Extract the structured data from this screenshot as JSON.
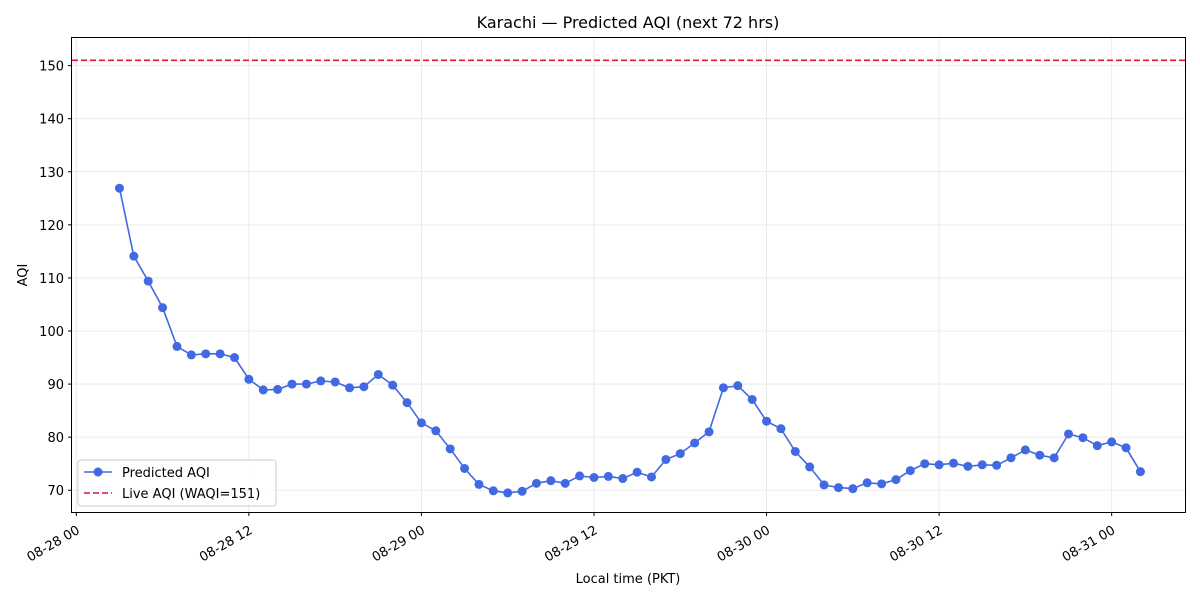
{
  "chart_data": {
    "type": "line",
    "title": "Karachi — Predicted AQI (next 72 hrs)",
    "xlabel": "Local time (PKT)",
    "ylabel": "AQI",
    "x_unit": "hours",
    "x_ticks": [
      {
        "label": "08-28 00",
        "value": 0
      },
      {
        "label": "08-28 12",
        "value": 12
      },
      {
        "label": "08-29 00",
        "value": 24
      },
      {
        "label": "08-29 12",
        "value": 36
      },
      {
        "label": "08-30 00",
        "value": 48
      },
      {
        "label": "08-30 12",
        "value": 60
      },
      {
        "label": "08-31 00",
        "value": 72
      }
    ],
    "xlim": [
      -0.3,
      77.1
    ],
    "y_ticks": [
      70,
      80,
      90,
      100,
      110,
      120,
      130,
      140,
      150
    ],
    "ylim": [
      65.9,
      155.2
    ],
    "grid": true,
    "legend_position": "lower-left",
    "series": [
      {
        "name": "Predicted AQI",
        "color": "#4169e1",
        "style": "line-marker",
        "x": [
          3,
          4,
          5,
          6,
          7,
          8,
          9,
          10,
          11,
          12,
          13,
          14,
          15,
          16,
          17,
          18,
          19,
          20,
          21,
          22,
          23,
          24,
          25,
          26,
          27,
          28,
          29,
          30,
          31,
          32,
          33,
          34,
          35,
          36,
          37,
          38,
          39,
          40,
          41,
          42,
          43,
          44,
          45,
          46,
          47,
          48,
          49,
          50,
          51,
          52,
          53,
          54,
          55,
          56,
          57,
          58,
          59,
          60,
          61,
          62,
          63,
          64,
          65,
          66,
          67,
          68,
          69,
          70,
          71,
          72,
          73,
          74
        ],
        "values": [
          126.9,
          114.1,
          109.4,
          104.4,
          97.1,
          95.5,
          95.7,
          95.7,
          95.0,
          90.9,
          88.9,
          89.0,
          90.0,
          90.0,
          90.6,
          90.4,
          89.3,
          89.5,
          91.8,
          89.8,
          86.5,
          82.7,
          81.2,
          77.8,
          74.1,
          71.1,
          69.9,
          69.5,
          69.8,
          71.3,
          71.8,
          71.3,
          72.7,
          72.4,
          72.6,
          72.2,
          73.4,
          72.5,
          75.8,
          76.9,
          78.9,
          81.0,
          89.3,
          89.7,
          87.1,
          83.0,
          81.6,
          77.3,
          74.4,
          71.0,
          70.5,
          70.3,
          71.4,
          71.2,
          72.0,
          73.7,
          75.0,
          74.8,
          75.1,
          74.5,
          74.8,
          74.7,
          76.1,
          77.6,
          76.6,
          76.1,
          80.6,
          79.9,
          78.4,
          79.1,
          78.0,
          73.5
        ]
      },
      {
        "name": "Live AQI (WAQI=151)",
        "color": "#dc143c",
        "style": "dashed-hline",
        "value": 151
      }
    ]
  }
}
